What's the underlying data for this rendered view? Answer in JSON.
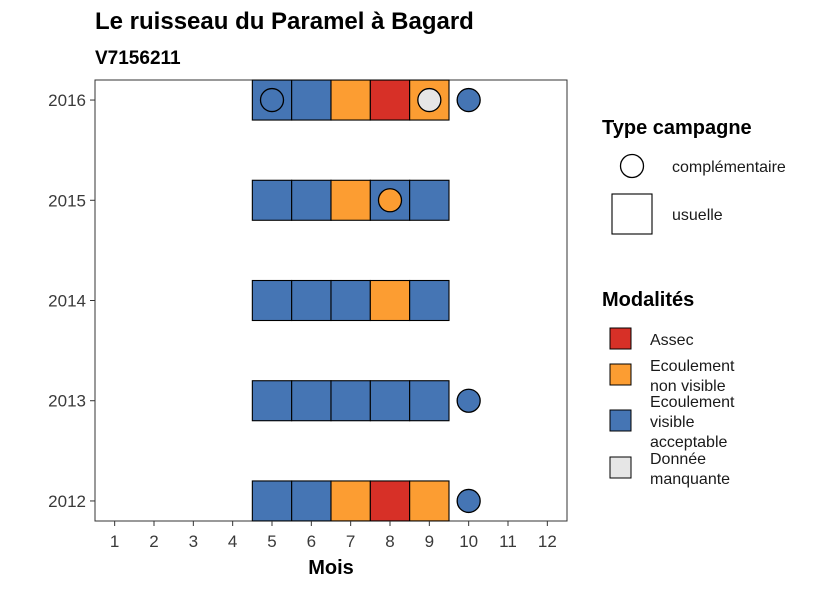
{
  "chart_data": {
    "type": "heatmap",
    "title": "Le ruisseau du Paramel à Bagard",
    "subtitle": "V7156211",
    "xlabel": "Mois",
    "ylabel": "",
    "x_ticks": [
      "1",
      "2",
      "3",
      "4",
      "5",
      "6",
      "7",
      "8",
      "9",
      "10",
      "11",
      "12"
    ],
    "y_ticks": [
      "2012",
      "2013",
      "2014",
      "2015",
      "2016"
    ],
    "xlim": [
      0.5,
      12.5
    ],
    "ylim": [
      2011.8,
      2016.2
    ],
    "grid": false,
    "legend_position": "right",
    "modalites": [
      {
        "key": "assec",
        "label_lines": [
          "Assec"
        ],
        "color": "#d73027"
      },
      {
        "key": "ecoulement_non_visible",
        "label_lines": [
          "Ecoulement",
          "non visible"
        ],
        "color": "#fc9d32"
      },
      {
        "key": "ecoulement_visible_acceptable",
        "label_lines": [
          "Ecoulement",
          "visible",
          "acceptable"
        ],
        "color": "#4575b4"
      },
      {
        "key": "donnee_manquante",
        "label_lines": [
          "Donnée",
          "manquante"
        ],
        "color": "#e6e6e6"
      }
    ],
    "campaign_types": [
      {
        "key": "complementaire",
        "label": "complémentaire",
        "shape": "circle"
      },
      {
        "key": "usuelle",
        "label": "usuelle",
        "shape": "square"
      }
    ],
    "legend_titles": {
      "campaign": "Type campagne",
      "modalites": "Modalités"
    },
    "observations": [
      {
        "year": 2012,
        "month": 5,
        "type": "usuelle",
        "modalite": "ecoulement_visible_acceptable"
      },
      {
        "year": 2012,
        "month": 6,
        "type": "usuelle",
        "modalite": "ecoulement_visible_acceptable"
      },
      {
        "year": 2012,
        "month": 7,
        "type": "usuelle",
        "modalite": "ecoulement_non_visible"
      },
      {
        "year": 2012,
        "month": 8,
        "type": "usuelle",
        "modalite": "assec"
      },
      {
        "year": 2012,
        "month": 9,
        "type": "usuelle",
        "modalite": "ecoulement_non_visible"
      },
      {
        "year": 2012,
        "month": 10,
        "type": "complementaire",
        "modalite": "ecoulement_visible_acceptable"
      },
      {
        "year": 2013,
        "month": 5,
        "type": "usuelle",
        "modalite": "ecoulement_visible_acceptable"
      },
      {
        "year": 2013,
        "month": 6,
        "type": "usuelle",
        "modalite": "ecoulement_visible_acceptable"
      },
      {
        "year": 2013,
        "month": 7,
        "type": "usuelle",
        "modalite": "ecoulement_visible_acceptable"
      },
      {
        "year": 2013,
        "month": 8,
        "type": "usuelle",
        "modalite": "ecoulement_visible_acceptable"
      },
      {
        "year": 2013,
        "month": 9,
        "type": "usuelle",
        "modalite": "ecoulement_visible_acceptable"
      },
      {
        "year": 2013,
        "month": 10,
        "type": "complementaire",
        "modalite": "ecoulement_visible_acceptable"
      },
      {
        "year": 2014,
        "month": 5,
        "type": "usuelle",
        "modalite": "ecoulement_visible_acceptable"
      },
      {
        "year": 2014,
        "month": 6,
        "type": "usuelle",
        "modalite": "ecoulement_visible_acceptable"
      },
      {
        "year": 2014,
        "month": 7,
        "type": "usuelle",
        "modalite": "ecoulement_visible_acceptable"
      },
      {
        "year": 2014,
        "month": 8,
        "type": "usuelle",
        "modalite": "ecoulement_non_visible"
      },
      {
        "year": 2014,
        "month": 9,
        "type": "usuelle",
        "modalite": "ecoulement_visible_acceptable"
      },
      {
        "year": 2015,
        "month": 5,
        "type": "usuelle",
        "modalite": "ecoulement_visible_acceptable"
      },
      {
        "year": 2015,
        "month": 6,
        "type": "usuelle",
        "modalite": "ecoulement_visible_acceptable"
      },
      {
        "year": 2015,
        "month": 7,
        "type": "usuelle",
        "modalite": "ecoulement_non_visible"
      },
      {
        "year": 2015,
        "month": 8,
        "type": "usuelle",
        "modalite": "ecoulement_visible_acceptable"
      },
      {
        "year": 2015,
        "month": 8,
        "type": "complementaire",
        "modalite": "ecoulement_non_visible"
      },
      {
        "year": 2015,
        "month": 9,
        "type": "usuelle",
        "modalite": "ecoulement_visible_acceptable"
      },
      {
        "year": 2016,
        "month": 5,
        "type": "usuelle",
        "modalite": "ecoulement_visible_acceptable"
      },
      {
        "year": 2016,
        "month": 5,
        "type": "complementaire",
        "modalite": "ecoulement_visible_acceptable"
      },
      {
        "year": 2016,
        "month": 6,
        "type": "usuelle",
        "modalite": "ecoulement_visible_acceptable"
      },
      {
        "year": 2016,
        "month": 7,
        "type": "usuelle",
        "modalite": "ecoulement_non_visible"
      },
      {
        "year": 2016,
        "month": 8,
        "type": "usuelle",
        "modalite": "assec"
      },
      {
        "year": 2016,
        "month": 9,
        "type": "usuelle",
        "modalite": "ecoulement_non_visible"
      },
      {
        "year": 2016,
        "month": 9,
        "type": "complementaire",
        "modalite": "donnee_manquante"
      },
      {
        "year": 2016,
        "month": 10,
        "type": "complementaire",
        "modalite": "ecoulement_visible_acceptable"
      }
    ]
  }
}
